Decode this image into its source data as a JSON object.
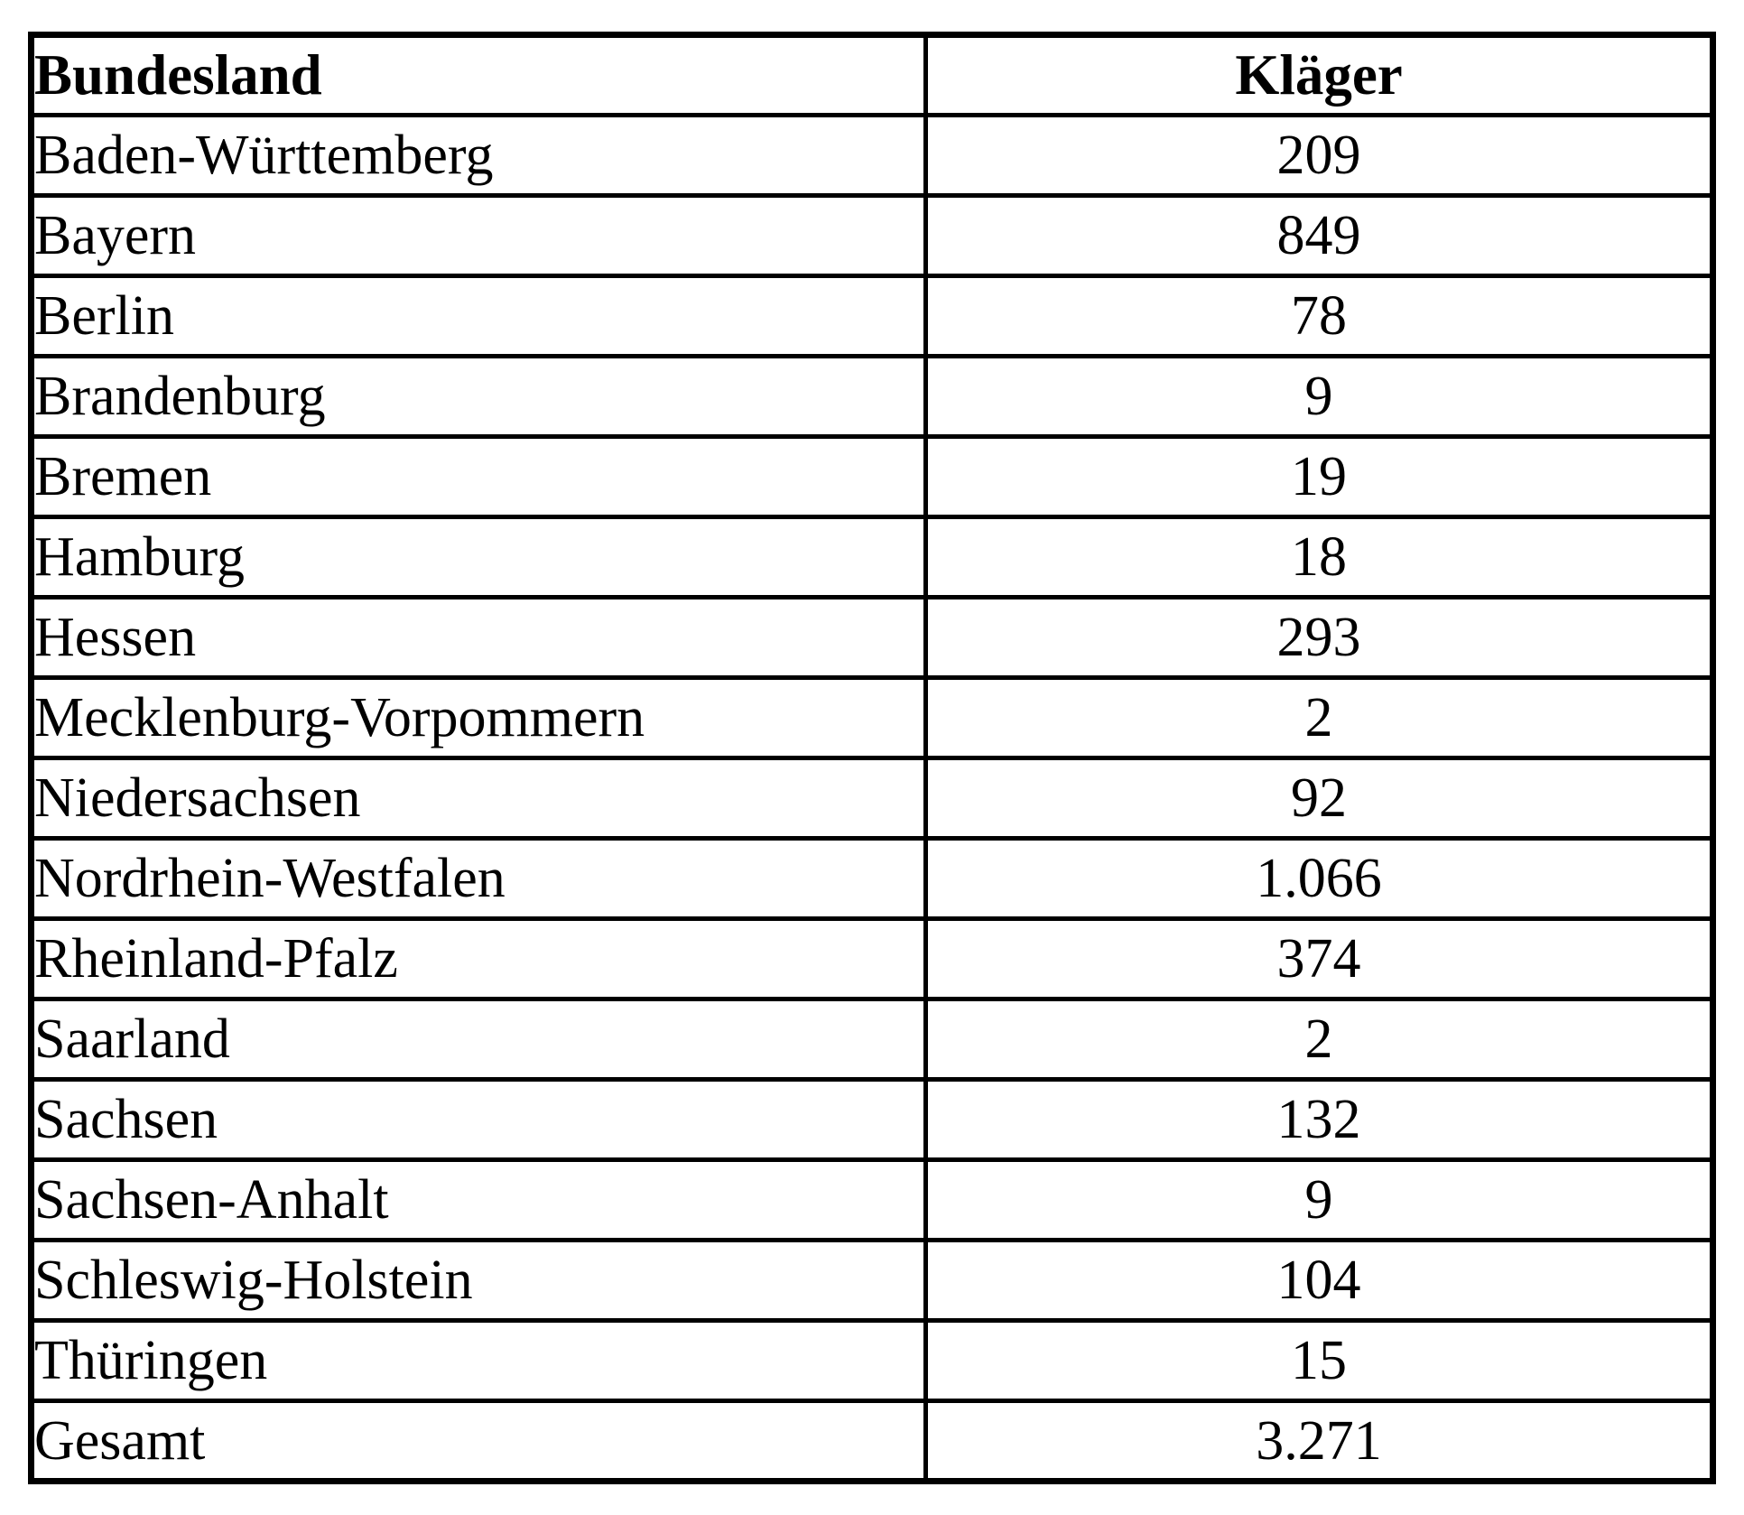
{
  "document": {
    "background_color": "#ffffff",
    "text_color": "#000000",
    "border_color": "#000000"
  },
  "table": {
    "header": {
      "bundesland": "Bundesland",
      "klaeger": "Kläger"
    },
    "rows": [
      {
        "land": "Baden-Württemberg",
        "klaeger": "209"
      },
      {
        "land": "Bayern",
        "klaeger": "849"
      },
      {
        "land": "Berlin",
        "klaeger": "78"
      },
      {
        "land": "Brandenburg",
        "klaeger": "9"
      },
      {
        "land": "Bremen",
        "klaeger": "19"
      },
      {
        "land": "Hamburg",
        "klaeger": "18"
      },
      {
        "land": "Hessen",
        "klaeger": "293"
      },
      {
        "land": "Mecklenburg-Vorpommern",
        "klaeger": "2"
      },
      {
        "land": "Niedersachsen",
        "klaeger": "92"
      },
      {
        "land": "Nordrhein-Westfalen",
        "klaeger": "1.066"
      },
      {
        "land": "Rheinland-Pfalz",
        "klaeger": "374"
      },
      {
        "land": "Saarland",
        "klaeger": "2"
      },
      {
        "land": "Sachsen",
        "klaeger": "132"
      },
      {
        "land": "Sachsen-Anhalt",
        "klaeger": "9"
      },
      {
        "land": "Schleswig-Holstein",
        "klaeger": "104"
      },
      {
        "land": "Thüringen",
        "klaeger": "15"
      },
      {
        "land": "Gesamt",
        "klaeger": "3.271"
      }
    ]
  }
}
